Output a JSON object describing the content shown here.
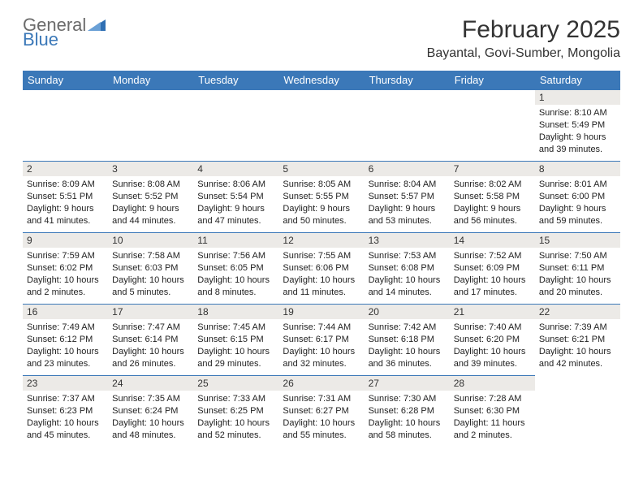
{
  "brand": {
    "w1": "General",
    "w2": "Blue"
  },
  "title": "February 2025",
  "location": "Bayantal, Govi-Sumber, Mongolia",
  "styling": {
    "header_bg": "#3b78b8",
    "header_fg": "#ffffff",
    "daynum_bg": "#eceae7",
    "row_border": "#3b78b8",
    "page_bg": "#ffffff",
    "text_color": "#222222",
    "month_title_fontsize": 30,
    "location_fontsize": 16,
    "dayhead_fontsize": 13,
    "cell_fontsize": 11
  },
  "dayheads": [
    "Sunday",
    "Monday",
    "Tuesday",
    "Wednesday",
    "Thursday",
    "Friday",
    "Saturday"
  ],
  "weeks": [
    [
      null,
      null,
      null,
      null,
      null,
      null,
      {
        "d": "1",
        "sr": "Sunrise: 8:10 AM",
        "ss": "Sunset: 5:49 PM",
        "dl1": "Daylight: 9 hours",
        "dl2": "and 39 minutes."
      }
    ],
    [
      {
        "d": "2",
        "sr": "Sunrise: 8:09 AM",
        "ss": "Sunset: 5:51 PM",
        "dl1": "Daylight: 9 hours",
        "dl2": "and 41 minutes."
      },
      {
        "d": "3",
        "sr": "Sunrise: 8:08 AM",
        "ss": "Sunset: 5:52 PM",
        "dl1": "Daylight: 9 hours",
        "dl2": "and 44 minutes."
      },
      {
        "d": "4",
        "sr": "Sunrise: 8:06 AM",
        "ss": "Sunset: 5:54 PM",
        "dl1": "Daylight: 9 hours",
        "dl2": "and 47 minutes."
      },
      {
        "d": "5",
        "sr": "Sunrise: 8:05 AM",
        "ss": "Sunset: 5:55 PM",
        "dl1": "Daylight: 9 hours",
        "dl2": "and 50 minutes."
      },
      {
        "d": "6",
        "sr": "Sunrise: 8:04 AM",
        "ss": "Sunset: 5:57 PM",
        "dl1": "Daylight: 9 hours",
        "dl2": "and 53 minutes."
      },
      {
        "d": "7",
        "sr": "Sunrise: 8:02 AM",
        "ss": "Sunset: 5:58 PM",
        "dl1": "Daylight: 9 hours",
        "dl2": "and 56 minutes."
      },
      {
        "d": "8",
        "sr": "Sunrise: 8:01 AM",
        "ss": "Sunset: 6:00 PM",
        "dl1": "Daylight: 9 hours",
        "dl2": "and 59 minutes."
      }
    ],
    [
      {
        "d": "9",
        "sr": "Sunrise: 7:59 AM",
        "ss": "Sunset: 6:02 PM",
        "dl1": "Daylight: 10 hours",
        "dl2": "and 2 minutes."
      },
      {
        "d": "10",
        "sr": "Sunrise: 7:58 AM",
        "ss": "Sunset: 6:03 PM",
        "dl1": "Daylight: 10 hours",
        "dl2": "and 5 minutes."
      },
      {
        "d": "11",
        "sr": "Sunrise: 7:56 AM",
        "ss": "Sunset: 6:05 PM",
        "dl1": "Daylight: 10 hours",
        "dl2": "and 8 minutes."
      },
      {
        "d": "12",
        "sr": "Sunrise: 7:55 AM",
        "ss": "Sunset: 6:06 PM",
        "dl1": "Daylight: 10 hours",
        "dl2": "and 11 minutes."
      },
      {
        "d": "13",
        "sr": "Sunrise: 7:53 AM",
        "ss": "Sunset: 6:08 PM",
        "dl1": "Daylight: 10 hours",
        "dl2": "and 14 minutes."
      },
      {
        "d": "14",
        "sr": "Sunrise: 7:52 AM",
        "ss": "Sunset: 6:09 PM",
        "dl1": "Daylight: 10 hours",
        "dl2": "and 17 minutes."
      },
      {
        "d": "15",
        "sr": "Sunrise: 7:50 AM",
        "ss": "Sunset: 6:11 PM",
        "dl1": "Daylight: 10 hours",
        "dl2": "and 20 minutes."
      }
    ],
    [
      {
        "d": "16",
        "sr": "Sunrise: 7:49 AM",
        "ss": "Sunset: 6:12 PM",
        "dl1": "Daylight: 10 hours",
        "dl2": "and 23 minutes."
      },
      {
        "d": "17",
        "sr": "Sunrise: 7:47 AM",
        "ss": "Sunset: 6:14 PM",
        "dl1": "Daylight: 10 hours",
        "dl2": "and 26 minutes."
      },
      {
        "d": "18",
        "sr": "Sunrise: 7:45 AM",
        "ss": "Sunset: 6:15 PM",
        "dl1": "Daylight: 10 hours",
        "dl2": "and 29 minutes."
      },
      {
        "d": "19",
        "sr": "Sunrise: 7:44 AM",
        "ss": "Sunset: 6:17 PM",
        "dl1": "Daylight: 10 hours",
        "dl2": "and 32 minutes."
      },
      {
        "d": "20",
        "sr": "Sunrise: 7:42 AM",
        "ss": "Sunset: 6:18 PM",
        "dl1": "Daylight: 10 hours",
        "dl2": "and 36 minutes."
      },
      {
        "d": "21",
        "sr": "Sunrise: 7:40 AM",
        "ss": "Sunset: 6:20 PM",
        "dl1": "Daylight: 10 hours",
        "dl2": "and 39 minutes."
      },
      {
        "d": "22",
        "sr": "Sunrise: 7:39 AM",
        "ss": "Sunset: 6:21 PM",
        "dl1": "Daylight: 10 hours",
        "dl2": "and 42 minutes."
      }
    ],
    [
      {
        "d": "23",
        "sr": "Sunrise: 7:37 AM",
        "ss": "Sunset: 6:23 PM",
        "dl1": "Daylight: 10 hours",
        "dl2": "and 45 minutes."
      },
      {
        "d": "24",
        "sr": "Sunrise: 7:35 AM",
        "ss": "Sunset: 6:24 PM",
        "dl1": "Daylight: 10 hours",
        "dl2": "and 48 minutes."
      },
      {
        "d": "25",
        "sr": "Sunrise: 7:33 AM",
        "ss": "Sunset: 6:25 PM",
        "dl1": "Daylight: 10 hours",
        "dl2": "and 52 minutes."
      },
      {
        "d": "26",
        "sr": "Sunrise: 7:31 AM",
        "ss": "Sunset: 6:27 PM",
        "dl1": "Daylight: 10 hours",
        "dl2": "and 55 minutes."
      },
      {
        "d": "27",
        "sr": "Sunrise: 7:30 AM",
        "ss": "Sunset: 6:28 PM",
        "dl1": "Daylight: 10 hours",
        "dl2": "and 58 minutes."
      },
      {
        "d": "28",
        "sr": "Sunrise: 7:28 AM",
        "ss": "Sunset: 6:30 PM",
        "dl1": "Daylight: 11 hours",
        "dl2": "and 2 minutes."
      },
      null
    ]
  ]
}
